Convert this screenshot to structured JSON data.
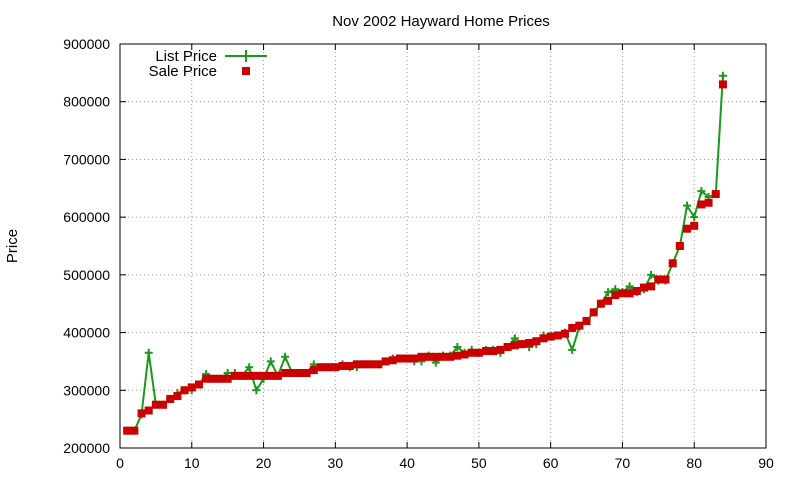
{
  "chart_data": {
    "type": "line",
    "title": "Nov 2002 Hayward Home Prices",
    "xlabel": "",
    "ylabel": "Price",
    "xlim": [
      0,
      90
    ],
    "ylim": [
      200000,
      900000
    ],
    "xticks": [
      0,
      10,
      20,
      30,
      40,
      50,
      60,
      70,
      80,
      90
    ],
    "yticks": [
      200000,
      300000,
      400000,
      500000,
      600000,
      700000,
      800000,
      900000
    ],
    "grid": true,
    "legend_position": "top-left",
    "series": [
      {
        "name": "List Price",
        "style": "linespoints",
        "color": "#1a9a1a",
        "x": [
          1,
          2,
          3,
          4,
          5,
          6,
          7,
          8,
          9,
          10,
          11,
          12,
          13,
          14,
          15,
          16,
          17,
          18,
          19,
          20,
          21,
          22,
          23,
          24,
          25,
          26,
          27,
          28,
          29,
          30,
          31,
          32,
          33,
          34,
          35,
          36,
          37,
          38,
          39,
          40,
          41,
          42,
          43,
          44,
          45,
          46,
          47,
          48,
          49,
          50,
          51,
          52,
          53,
          54,
          55,
          56,
          57,
          58,
          59,
          60,
          61,
          62,
          63,
          64,
          65,
          66,
          67,
          68,
          69,
          70,
          71,
          72,
          73,
          74,
          75,
          76,
          77,
          78,
          79,
          80,
          81,
          82,
          83,
          84
        ],
        "values": [
          230000,
          230000,
          258000,
          365000,
          275000,
          275000,
          285000,
          295000,
          300000,
          300000,
          310000,
          328000,
          320000,
          320000,
          330000,
          330000,
          325000,
          340000,
          300000,
          320000,
          350000,
          325000,
          358000,
          330000,
          330000,
          330000,
          345000,
          340000,
          340000,
          340000,
          345000,
          340000,
          340000,
          345000,
          345000,
          345000,
          350000,
          355000,
          355000,
          355000,
          350000,
          350000,
          360000,
          348000,
          360000,
          360000,
          375000,
          365000,
          370000,
          365000,
          370000,
          370000,
          365000,
          375000,
          390000,
          380000,
          375000,
          380000,
          395000,
          395000,
          395000,
          400000,
          370000,
          410000,
          420000,
          435000,
          450000,
          470000,
          475000,
          470000,
          480000,
          470000,
          475000,
          500000,
          490000,
          490000,
          520000,
          550000,
          620000,
          600000,
          645000,
          635000,
          640000,
          845000
        ]
      },
      {
        "name": "Sale Price",
        "style": "points",
        "color": "#cc0000",
        "x": [
          1,
          2,
          3,
          4,
          5,
          6,
          7,
          8,
          9,
          10,
          11,
          12,
          13,
          14,
          15,
          16,
          17,
          18,
          19,
          20,
          21,
          22,
          23,
          24,
          25,
          26,
          27,
          28,
          29,
          30,
          31,
          32,
          33,
          34,
          35,
          36,
          37,
          38,
          39,
          40,
          41,
          42,
          43,
          44,
          45,
          46,
          47,
          48,
          49,
          50,
          51,
          52,
          53,
          54,
          55,
          56,
          57,
          58,
          59,
          60,
          61,
          62,
          63,
          64,
          65,
          66,
          67,
          68,
          69,
          70,
          71,
          72,
          73,
          74,
          75,
          76,
          77,
          78,
          79,
          80,
          81,
          82,
          83,
          84
        ],
        "values": [
          230000,
          230000,
          260000,
          265000,
          275000,
          275000,
          285000,
          290000,
          300000,
          305000,
          310000,
          320000,
          320000,
          320000,
          320000,
          325000,
          325000,
          325000,
          325000,
          325000,
          325000,
          325000,
          330000,
          330000,
          330000,
          330000,
          335000,
          340000,
          340000,
          340000,
          342000,
          342000,
          345000,
          345000,
          345000,
          345000,
          350000,
          352000,
          355000,
          355000,
          355000,
          358000,
          358000,
          358000,
          358000,
          358000,
          360000,
          362000,
          365000,
          365000,
          368000,
          368000,
          370000,
          375000,
          378000,
          380000,
          382000,
          385000,
          390000,
          393000,
          395000,
          398000,
          408000,
          412000,
          420000,
          435000,
          450000,
          455000,
          465000,
          468000,
          468000,
          472000,
          478000,
          480000,
          492000,
          492000,
          520000,
          550000,
          580000,
          585000,
          622000,
          625000,
          640000,
          830000
        ]
      }
    ]
  }
}
